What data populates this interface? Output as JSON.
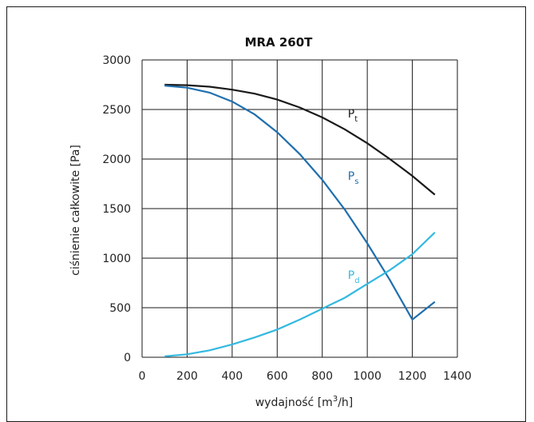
{
  "chart_data": {
    "type": "line",
    "title": "MRA 260T",
    "xlabel_pre": "wydajność [m",
    "xlabel_sup": "3",
    "xlabel_post": "/h]",
    "ylabel": "ciśnienie całkowite [Pa]",
    "xlim": [
      0,
      1400
    ],
    "ylim": [
      0,
      3000
    ],
    "x_ticks": [
      0,
      200,
      400,
      600,
      800,
      1000,
      1200,
      1400
    ],
    "y_ticks": [
      0,
      500,
      1000,
      1500,
      2000,
      2500,
      3000
    ],
    "grid": true,
    "series": [
      {
        "name_main": "P",
        "name_sub": "t",
        "color": "#1a1a1a",
        "label_at": [
          935,
          2420
        ],
        "points": [
          [
            100,
            2750
          ],
          [
            200,
            2745
          ],
          [
            300,
            2730
          ],
          [
            400,
            2700
          ],
          [
            500,
            2660
          ],
          [
            600,
            2600
          ],
          [
            700,
            2520
          ],
          [
            800,
            2420
          ],
          [
            900,
            2300
          ],
          [
            1000,
            2160
          ],
          [
            1100,
            2000
          ],
          [
            1200,
            1830
          ],
          [
            1300,
            1640
          ]
        ]
      },
      {
        "name_main": "P",
        "name_sub": "s",
        "color": "#1f6fae",
        "label_at": [
          935,
          1790
        ],
        "points": [
          [
            100,
            2740
          ],
          [
            200,
            2720
          ],
          [
            300,
            2670
          ],
          [
            400,
            2580
          ],
          [
            500,
            2450
          ],
          [
            600,
            2270
          ],
          [
            700,
            2050
          ],
          [
            800,
            1790
          ],
          [
            900,
            1490
          ],
          [
            1000,
            1150
          ],
          [
            1100,
            780
          ],
          [
            1200,
            380
          ],
          [
            1300,
            560
          ]
        ]
      },
      {
        "name_main": "P",
        "name_sub": "d",
        "color": "#33b9e0",
        "label_at": [
          935,
          790
        ],
        "points": [
          [
            100,
            10
          ],
          [
            200,
            30
          ],
          [
            300,
            70
          ],
          [
            400,
            130
          ],
          [
            500,
            200
          ],
          [
            600,
            280
          ],
          [
            700,
            380
          ],
          [
            800,
            490
          ],
          [
            900,
            600
          ],
          [
            1000,
            740
          ],
          [
            1100,
            880
          ],
          [
            1200,
            1040
          ],
          [
            1300,
            1260
          ]
        ]
      }
    ]
  }
}
